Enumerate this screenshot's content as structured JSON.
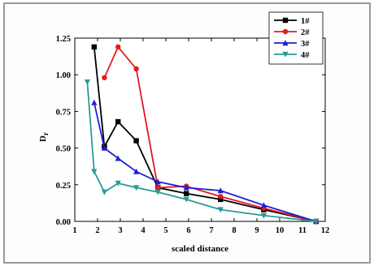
{
  "chart_data": {
    "type": "line",
    "xlabel": "scaled distance",
    "ylabel_main": "D",
    "ylabel_sub": "r",
    "xlim": [
      1,
      12
    ],
    "ylim": [
      0,
      1.25
    ],
    "xticks": [
      "1",
      "2",
      "3",
      "4",
      "5",
      "6",
      "7",
      "8",
      "9",
      "10",
      "11",
      "12"
    ],
    "yticks": [
      "0.00",
      "0.25",
      "0.50",
      "0.75",
      "1.00",
      "1.25"
    ],
    "legend_position": "top-right",
    "series": [
      {
        "name": "1#",
        "color": "#000000",
        "marker": "square",
        "x": [
          1.85,
          2.3,
          2.9,
          3.7,
          4.65,
          5.9,
          7.4,
          9.3,
          11.6
        ],
        "y": [
          1.19,
          0.51,
          0.68,
          0.55,
          0.23,
          0.19,
          0.15,
          0.08,
          0.0
        ]
      },
      {
        "name": "2#",
        "color": "#e41a1c",
        "marker": "circle",
        "x": [
          2.3,
          2.9,
          3.7,
          4.65,
          5.9,
          7.4,
          9.3,
          11.6
        ],
        "y": [
          0.98,
          1.19,
          1.04,
          0.23,
          0.24,
          0.17,
          0.09,
          0.0
        ]
      },
      {
        "name": "3#",
        "color": "#1f1fd6",
        "marker": "triangle-up",
        "x": [
          1.85,
          2.3,
          2.9,
          3.7,
          4.65,
          5.9,
          7.4,
          9.3,
          11.6
        ],
        "y": [
          0.81,
          0.5,
          0.43,
          0.34,
          0.27,
          0.23,
          0.21,
          0.11,
          0.0
        ]
      },
      {
        "name": "4#",
        "color": "#2a9a96",
        "marker": "triangle-down",
        "x": [
          1.55,
          1.85,
          2.3,
          2.9,
          3.7,
          4.65,
          5.9,
          7.4,
          9.3,
          11.6
        ],
        "y": [
          0.95,
          0.34,
          0.2,
          0.26,
          0.23,
          0.2,
          0.15,
          0.08,
          0.04,
          0.0
        ]
      }
    ]
  }
}
